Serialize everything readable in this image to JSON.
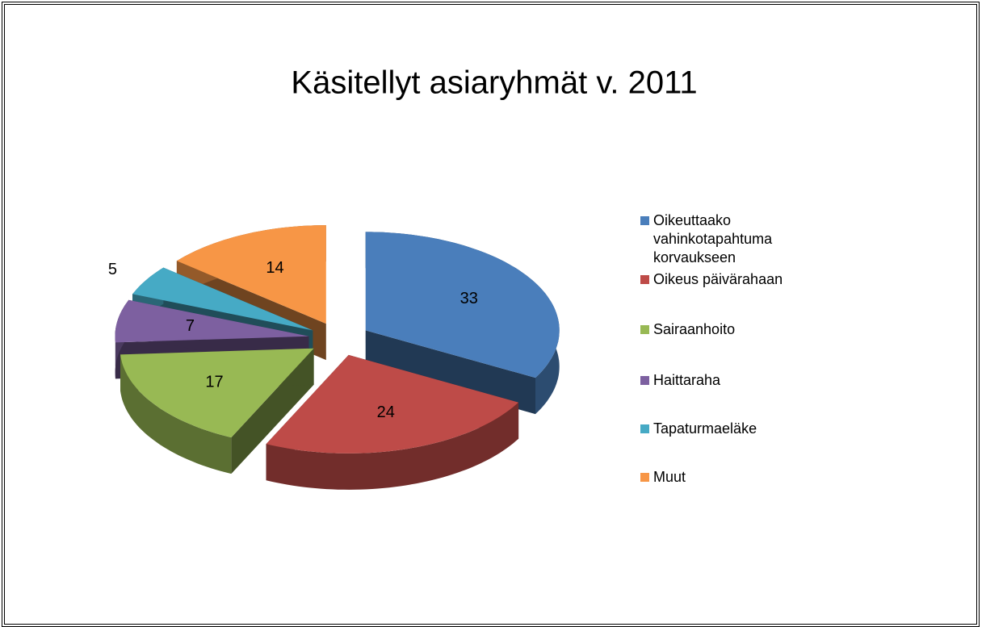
{
  "chart_data": {
    "type": "pie",
    "title": "Käsitellyt asiaryhmät v. 2011",
    "categories": [
      "Oikeuttaako vahinkotapahtuma korvaukseen",
      "Oikeus päivärahaan",
      "Sairaanhoito",
      "Haittaraha",
      "Tapaturmaeläke",
      "Muut"
    ],
    "values": [
      33,
      24,
      17,
      7,
      5,
      14
    ],
    "colors": [
      "#4a7ebb",
      "#be4b48",
      "#98b954",
      "#7d60a0",
      "#46aac5",
      "#f79646"
    ],
    "legend": "right"
  }
}
